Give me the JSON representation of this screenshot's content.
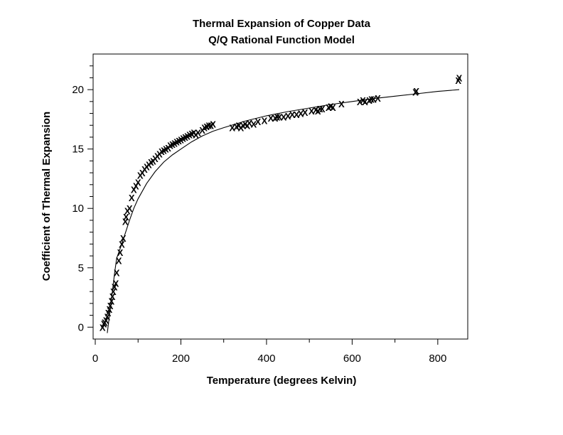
{
  "chart_data": {
    "type": "scatter",
    "title": "Thermal Expansion of Copper Data",
    "subtitle": "Q/Q Rational Function Model",
    "xlabel": "Temperature (degrees Kelvin)",
    "ylabel": "Coefficient of Thermal Expansion",
    "xlim": [
      -5,
      870
    ],
    "ylim": [
      -1,
      23
    ],
    "xticks": [
      0,
      200,
      400,
      600,
      800
    ],
    "xtick_labels": [
      "0",
      "200",
      "400",
      "600",
      "800"
    ],
    "yticks": [
      0,
      5,
      10,
      15,
      20
    ],
    "ytick_labels": [
      "0",
      "5",
      "10",
      "15",
      "20"
    ],
    "grid": false,
    "marker": "X",
    "series": [
      {
        "type": "scatter",
        "x": [
          17,
          20,
          22,
          25,
          28,
          30,
          33,
          35,
          38,
          40,
          42,
          45,
          48,
          50,
          55,
          58,
          62,
          65,
          70,
          72,
          75,
          80,
          85,
          90,
          95,
          100,
          105,
          110,
          115,
          120,
          125,
          130,
          135,
          140,
          145,
          150,
          155,
          160,
          165,
          170,
          175,
          180,
          185,
          190,
          195,
          200,
          205,
          210,
          215,
          220,
          225,
          230,
          235,
          240,
          250,
          255,
          260,
          265,
          270,
          275,
          320,
          330,
          335,
          340,
          345,
          350,
          355,
          360,
          370,
          380,
          395,
          410,
          420,
          425,
          430,
          440,
          450,
          460,
          470,
          480,
          490,
          505,
          515,
          520,
          525,
          530,
          545,
          550,
          555,
          575,
          618,
          625,
          630,
          640,
          645,
          650,
          660,
          748,
          750,
          848,
          850
        ],
        "y": [
          0.0,
          0.3,
          0.4,
          0.6,
          0.9,
          1.2,
          1.5,
          1.8,
          2.2,
          2.6,
          3.0,
          3.4,
          3.7,
          4.6,
          5.6,
          6.3,
          7.0,
          7.5,
          8.9,
          9.3,
          9.8,
          10.0,
          10.9,
          11.6,
          11.9,
          12.2,
          12.8,
          13.0,
          13.3,
          13.5,
          13.7,
          13.9,
          14.0,
          14.2,
          14.4,
          14.6,
          14.8,
          14.9,
          15.0,
          15.1,
          15.3,
          15.4,
          15.5,
          15.6,
          15.7,
          15.8,
          15.9,
          16.0,
          16.1,
          16.2,
          16.3,
          16.4,
          16.2,
          16.4,
          16.6,
          16.8,
          16.9,
          17.0,
          17.0,
          17.1,
          16.8,
          16.9,
          17.0,
          16.8,
          17.0,
          17.1,
          17.0,
          17.2,
          17.1,
          17.3,
          17.4,
          17.6,
          17.6,
          17.7,
          17.7,
          17.7,
          17.8,
          17.9,
          17.9,
          18.0,
          18.1,
          18.2,
          18.3,
          18.2,
          18.4,
          18.4,
          18.5,
          18.6,
          18.5,
          18.8,
          19.0,
          19.1,
          19.0,
          19.1,
          19.2,
          19.2,
          19.3,
          19.8,
          19.9,
          20.8,
          21.0
        ]
      },
      {
        "type": "line",
        "x": [
          28,
          35,
          40,
          45,
          50,
          60,
          70,
          80,
          90,
          100,
          120,
          140,
          160,
          180,
          200,
          225,
          250,
          275,
          300,
          350,
          400,
          450,
          500,
          550,
          600,
          650,
          700,
          750,
          800,
          850
        ],
        "y": [
          -0.5,
          1.5,
          3.0,
          4.5,
          5.8,
          6.8,
          7.9,
          9.0,
          10.0,
          10.8,
          12.1,
          13.1,
          13.9,
          14.5,
          15.0,
          15.6,
          16.1,
          16.5,
          16.8,
          17.35,
          17.8,
          18.15,
          18.45,
          18.75,
          19.0,
          19.25,
          19.45,
          19.65,
          19.85,
          20.0
        ]
      }
    ]
  }
}
